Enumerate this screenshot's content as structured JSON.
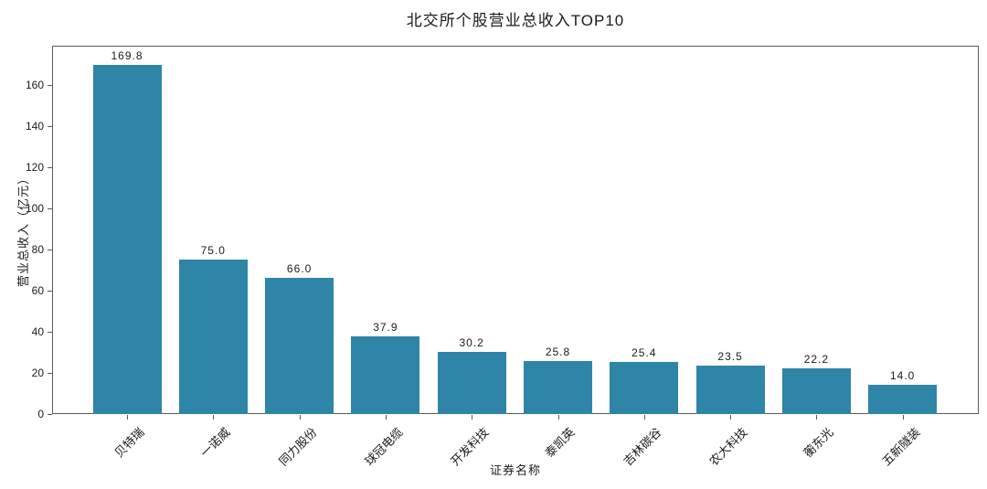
{
  "chart_data": {
    "type": "bar",
    "title": "北交所个股营业总收入TOP10",
    "xlabel": "证券名称",
    "ylabel": "营业总收入（亿元）",
    "categories": [
      "贝特瑞",
      "一诺威",
      "同力股份",
      "球冠电缆",
      "开发科技",
      "泰凯英",
      "吉林碳谷",
      "农大科技",
      "蘅东光",
      "五新隧装"
    ],
    "values": [
      169.8,
      75.0,
      66.0,
      37.9,
      30.2,
      25.8,
      25.4,
      23.5,
      22.2,
      14.0
    ],
    "value_labels": [
      "169.8",
      "75.0",
      "66.0",
      "37.9",
      "30.2",
      "25.8",
      "25.4",
      "23.5",
      "22.2",
      "14.0"
    ],
    "yticks": [
      0,
      20,
      40,
      60,
      80,
      100,
      120,
      140,
      160
    ],
    "ylim": [
      0,
      179
    ],
    "grid": false,
    "legend": null,
    "bar_color": "#2e85a8",
    "axis_color": "#5a5a5a",
    "text_color": "#1a1a1a"
  }
}
